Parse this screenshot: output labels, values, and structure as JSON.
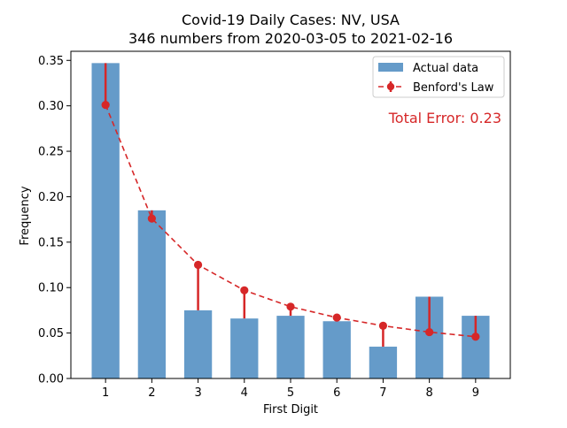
{
  "chart_data": {
    "type": "bar",
    "title": "Covid-19 Daily Cases: NV, USA",
    "subtitle": "346 numbers from 2020-03-05 to 2021-02-16",
    "xlabel": "First Digit",
    "ylabel": "Frequency",
    "categories": [
      "1",
      "2",
      "3",
      "4",
      "5",
      "6",
      "7",
      "8",
      "9"
    ],
    "ylim": [
      0,
      0.36
    ],
    "yticks": [
      "0.00",
      "0.05",
      "0.10",
      "0.15",
      "0.20",
      "0.25",
      "0.30",
      "0.35"
    ],
    "grid": false,
    "legend_position": "top-right",
    "series": [
      {
        "name": "Actual data",
        "type": "bar",
        "color": "#4a8ac0",
        "values": [
          0.347,
          0.185,
          0.075,
          0.066,
          0.069,
          0.063,
          0.035,
          0.09,
          0.069
        ]
      },
      {
        "name": "Benford's Law",
        "type": "line",
        "style": "dashed-with-markers",
        "color": "#d62728",
        "values": [
          0.301,
          0.176,
          0.125,
          0.097,
          0.079,
          0.067,
          0.058,
          0.051,
          0.046
        ]
      }
    ],
    "annotation": "Total Error: 0.23"
  }
}
